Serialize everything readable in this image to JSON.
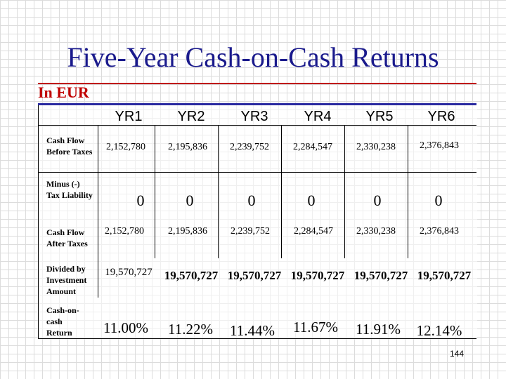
{
  "slide": {
    "title": "Five-Year Cash-on-Cash Returns",
    "subtitle": "In EUR",
    "page_number": "144"
  },
  "table": {
    "columns": [
      "YR1",
      "YR2",
      "YR3",
      "YR4",
      "YR5",
      "YR6"
    ],
    "rows": [
      {
        "label": "Cash Flow Before Taxes",
        "values": [
          "2,152,780",
          "2,195,836",
          "2,239,752",
          "2,284,547",
          "2,330,238",
          "2,376,843"
        ]
      },
      {
        "label": "Minus (-) Tax Liability",
        "values": [
          "0",
          "0",
          "0",
          "0",
          "0",
          "0"
        ]
      },
      {
        "label": "Cash Flow After Taxes",
        "values": [
          "2,152,780",
          "2,195,836",
          "2,239,752",
          "2,284,547",
          "2,330,238",
          "2,376,843"
        ]
      },
      {
        "label": "Divided by Investment Amount",
        "values": [
          "19,570,727",
          "19,570,727",
          "19,570,727",
          "19,570,727",
          "19,570,727",
          "19,570,727"
        ]
      },
      {
        "label": "Cash-on-cash Return",
        "values": [
          "11.00%",
          "11.22%",
          "11.44%",
          "11.67%",
          "11.91%",
          "12.14%"
        ]
      }
    ]
  },
  "colors": {
    "title": "#1a1a8c",
    "subtitle": "#c00000",
    "header_rule": "#2a2aa0"
  }
}
